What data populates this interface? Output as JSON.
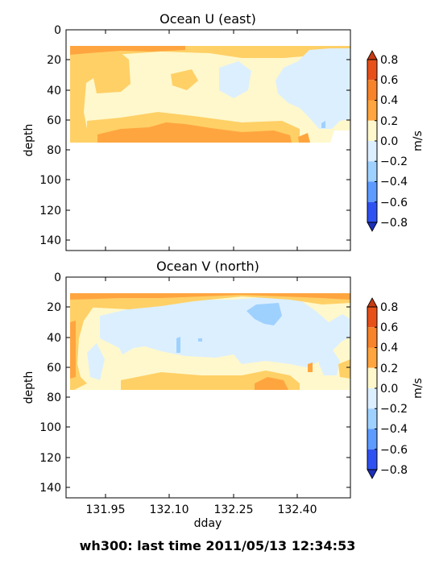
{
  "figure": {
    "suptitle": "wh300: last time 2011/05/13 12:34:53"
  },
  "colorbar": {
    "ticks": [
      "0.8",
      "0.6",
      "0.4",
      "0.2",
      "0.0",
      "−0.2",
      "−0.4",
      "−0.6",
      "−0.8"
    ],
    "levels": [
      0.8,
      0.6,
      0.4,
      0.2,
      0.0,
      -0.2,
      -0.4,
      -0.6,
      -0.8
    ],
    "label": "m/s",
    "colors": [
      "#e8501a",
      "#f7832a",
      "#ffa53f",
      "#ffd066",
      "#fff8cc",
      "#dcefff",
      "#9fd1ff",
      "#5d9bff",
      "#2e52f2"
    ],
    "over_color": "#c73a12",
    "under_color": "#1b2fb8"
  },
  "chart_data": [
    {
      "type": "heatmap",
      "title": "Ocean U (east)",
      "xlabel": "",
      "ylabel": "depth",
      "xticks": [
        "131.95",
        "132.10",
        "132.25",
        "132.40"
      ],
      "xtick_values": [
        131.95,
        132.1,
        132.25,
        132.4
      ],
      "yticks": [
        "0",
        "20",
        "40",
        "60",
        "80",
        "100",
        "120",
        "140"
      ],
      "ytick_values": [
        0,
        20,
        40,
        60,
        80,
        100,
        120,
        140
      ],
      "xlim": [
        131.92,
        132.47
      ],
      "ylim": [
        147,
        0
      ],
      "data_extent": {
        "x": [
          131.93,
          132.47
        ],
        "depth": [
          11,
          76
        ]
      },
      "features": [
        {
          "level": 0.4,
          "x": [
            131.93,
            132.23
          ],
          "depth": [
            63,
            76
          ]
        },
        {
          "level": 0.2,
          "x": [
            131.93,
            132.0
          ],
          "depth": [
            20,
            76
          ]
        },
        {
          "level": 0.0,
          "x": [
            132.05,
            132.4
          ],
          "depth": [
            20,
            60
          ]
        },
        {
          "level": -0.2,
          "x": [
            132.23,
            132.47
          ],
          "depth": [
            15,
            66
          ]
        }
      ]
    },
    {
      "type": "heatmap",
      "title": "Ocean V (north)",
      "xlabel": "dday",
      "ylabel": "depth",
      "xticks": [
        "131.95",
        "132.10",
        "132.25",
        "132.40"
      ],
      "xtick_values": [
        131.95,
        132.1,
        132.25,
        132.4
      ],
      "yticks": [
        "0",
        "20",
        "40",
        "60",
        "80",
        "100",
        "120",
        "140"
      ],
      "ytick_values": [
        0,
        20,
        40,
        60,
        80,
        100,
        120,
        140
      ],
      "xlim": [
        131.92,
        132.47
      ],
      "ylim": [
        147,
        0
      ],
      "data_extent": {
        "x": [
          131.93,
          132.47
        ],
        "depth": [
          11,
          76
        ]
      },
      "features": [
        {
          "level": 0.4,
          "x": [
            131.93,
            132.47
          ],
          "depth": [
            11,
            16
          ]
        },
        {
          "level": -0.2,
          "x": [
            131.98,
            132.44
          ],
          "depth": [
            16,
            62
          ]
        },
        {
          "level": -0.4,
          "x": [
            132.25,
            132.36
          ],
          "depth": [
            18,
            32
          ]
        },
        {
          "level": 0.4,
          "x": [
            132.3,
            132.38
          ],
          "depth": [
            68,
            76
          ]
        }
      ]
    }
  ]
}
